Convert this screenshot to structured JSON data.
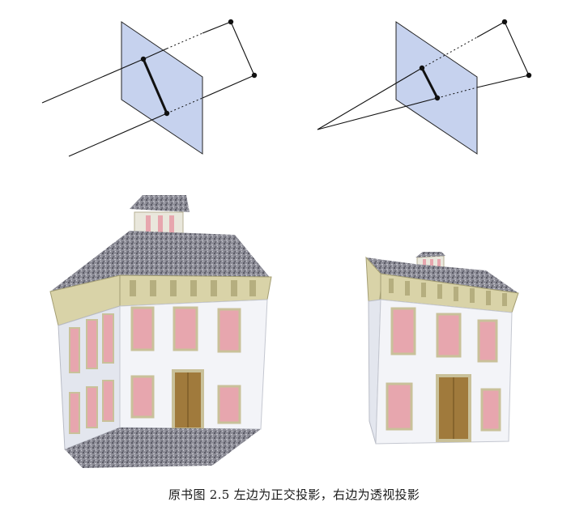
{
  "figure": {
    "caption": "原书图 2.5  左边为正交投影，右边为透视投影",
    "panels": [
      {
        "name": "orthographic-projection",
        "position": "top-left"
      },
      {
        "name": "perspective-projection",
        "position": "top-right"
      },
      {
        "name": "orthographic-house-render",
        "position": "bottom-left"
      },
      {
        "name": "perspective-house-render",
        "position": "bottom-right"
      }
    ],
    "colors": {
      "plane": "#c6d2ee",
      "roof": "#8a8a96",
      "wall": "#eef0f4",
      "trim": "#d9d3a8",
      "window": "#e7a6ae",
      "door": "#a07a3c"
    }
  }
}
